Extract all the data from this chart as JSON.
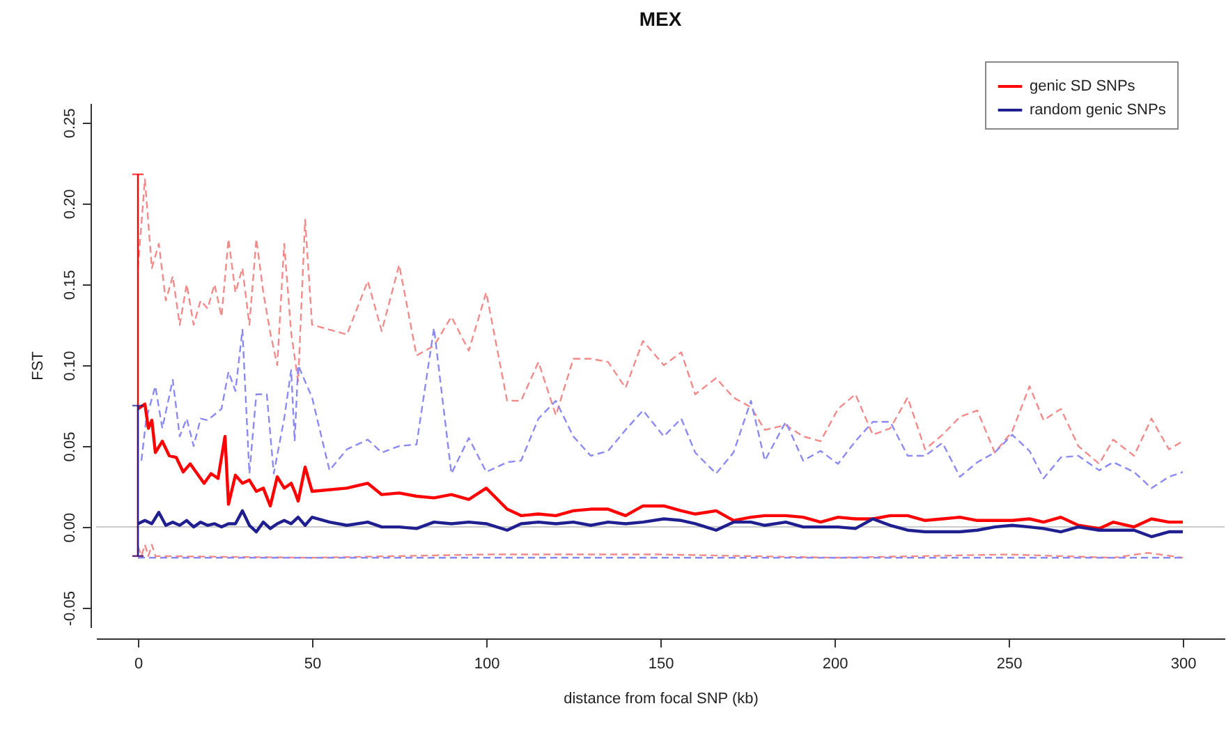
{
  "chart_data": {
    "type": "line",
    "title": "MEX",
    "xlabel": "distance from focal SNP (kb)",
    "ylabel": "FST",
    "xlim": [
      -12,
      312
    ],
    "xticks": [
      0,
      50,
      100,
      150,
      200,
      250,
      300
    ],
    "ylim": [
      -0.062,
      0.262
    ],
    "yticks": [
      -0.05,
      {
        "value": 0,
        "label": "0.00"
      },
      0.05,
      {
        "value": 0.1,
        "label": "0.10"
      },
      0.15,
      {
        "value": 0.2,
        "label": "0.20"
      },
      0.25
    ],
    "grid": false,
    "legend": "top right",
    "ref_lines": [
      {
        "axis": "y",
        "value": 0,
        "color": "#cccccc"
      }
    ],
    "series": [
      {
        "color": "#f28a8a",
        "line_style": "dashed",
        "x": [
          0,
          2,
          4,
          6,
          8,
          10,
          12,
          14,
          16,
          18,
          20,
          22,
          24,
          26,
          28,
          30,
          32,
          34,
          36,
          38,
          40,
          42,
          44,
          46,
          48,
          50,
          60,
          66,
          70,
          75,
          80,
          85,
          90,
          95,
          100,
          106,
          110,
          115,
          120,
          125,
          130,
          135,
          140,
          145,
          151,
          156,
          160,
          166,
          171,
          176,
          180,
          186,
          191,
          196,
          201,
          206,
          211,
          216,
          221,
          226,
          231,
          236,
          241,
          246,
          251,
          256,
          260,
          265,
          270,
          276,
          280,
          286,
          291,
          296,
          300
        ],
        "values": [
          0.16,
          0.215,
          0.16,
          0.175,
          0.14,
          0.155,
          0.125,
          0.15,
          0.125,
          0.14,
          0.135,
          0.15,
          0.13,
          0.178,
          0.145,
          0.16,
          0.125,
          0.178,
          0.145,
          0.12,
          0.1,
          0.175,
          0.12,
          0.09,
          0.19,
          0.125,
          0.119,
          0.152,
          0.121,
          0.162,
          0.106,
          0.112,
          0.13,
          0.109,
          0.145,
          0.078,
          0.078,
          0.102,
          0.069,
          0.104,
          0.104,
          0.102,
          0.086,
          0.115,
          0.1,
          0.108,
          0.082,
          0.092,
          0.08,
          0.074,
          0.06,
          0.063,
          0.056,
          0.053,
          0.073,
          0.082,
          0.057,
          0.061,
          0.08,
          0.048,
          0.057,
          0.068,
          0.072,
          0.046,
          0.059,
          0.087,
          0.066,
          0.073,
          0.05,
          0.039,
          0.054,
          0.044,
          0.067,
          0.048,
          0.053
        ]
      },
      {
        "color": "#8a8af2",
        "line_style": "dashed",
        "x": [
          1,
          2.4,
          5,
          7,
          10,
          12,
          14,
          16,
          18,
          20,
          24,
          26,
          28,
          30,
          32,
          34,
          37,
          39,
          42,
          44,
          45,
          46,
          50,
          55,
          60,
          66,
          70,
          75,
          80,
          85,
          90,
          95,
          100,
          106,
          110,
          115,
          120,
          125,
          130,
          135,
          140,
          145,
          151,
          156,
          160,
          166,
          171,
          176,
          180,
          186,
          191,
          196,
          201,
          206,
          211,
          216,
          221,
          226,
          231,
          236,
          241,
          246,
          251,
          256,
          260,
          265,
          270,
          276,
          280,
          286,
          291,
          296,
          300
        ],
        "values": [
          0.041,
          0.067,
          0.087,
          0.061,
          0.091,
          0.056,
          0.067,
          0.05,
          0.067,
          0.066,
          0.073,
          0.096,
          0.084,
          0.122,
          0.033,
          0.082,
          0.082,
          0.033,
          0.067,
          0.097,
          0.053,
          0.1,
          0.08,
          0.035,
          0.048,
          0.054,
          0.046,
          0.05,
          0.051,
          0.123,
          0.033,
          0.055,
          0.034,
          0.04,
          0.041,
          0.067,
          0.078,
          0.056,
          0.044,
          0.047,
          0.06,
          0.072,
          0.056,
          0.067,
          0.046,
          0.033,
          0.046,
          0.078,
          0.041,
          0.065,
          0.041,
          0.047,
          0.039,
          0.053,
          0.065,
          0.065,
          0.044,
          0.044,
          0.052,
          0.031,
          0.04,
          0.046,
          0.057,
          0.047,
          0.03,
          0.043,
          0.044,
          0.035,
          0.04,
          0.034,
          0.024,
          0.031,
          0.034
        ]
      },
      {
        "color": "#f28a8a",
        "line_style": "dashed",
        "x": [
          0,
          1,
          2,
          3,
          4,
          5,
          50,
          100,
          150,
          200,
          250,
          280,
          290,
          300
        ],
        "values": [
          -0.012,
          -0.018,
          -0.011,
          -0.018,
          -0.011,
          -0.018,
          -0.019,
          -0.017,
          -0.017,
          -0.019,
          -0.017,
          -0.019,
          -0.016,
          -0.019
        ]
      },
      {
        "color": "#8a8af2",
        "line_style": "dashed",
        "x": [
          0,
          100,
          200,
          300
        ],
        "values": [
          -0.019,
          -0.019,
          -0.019,
          -0.019
        ]
      },
      {
        "name": "genic SD SNPs",
        "color": "#ff0000",
        "line_style": "solid",
        "x": [
          0,
          2,
          3,
          4,
          5,
          7,
          9,
          11,
          13,
          15,
          17,
          19,
          21,
          23,
          25,
          26,
          28,
          30,
          32,
          34,
          36,
          38,
          40,
          42,
          44,
          45,
          46,
          48,
          50,
          60,
          66,
          70,
          75,
          80,
          85,
          90,
          95,
          100,
          106,
          110,
          115,
          120,
          125,
          130,
          135,
          140,
          145,
          151,
          156,
          160,
          166,
          171,
          176,
          180,
          186,
          191,
          196,
          201,
          206,
          211,
          216,
          221,
          226,
          231,
          236,
          241,
          246,
          251,
          256,
          260,
          265,
          270,
          276,
          280,
          286,
          291,
          296,
          300
        ],
        "values": [
          0.073,
          0.076,
          0.061,
          0.066,
          0.046,
          0.053,
          0.044,
          0.043,
          0.034,
          0.039,
          0.033,
          0.027,
          0.033,
          0.03,
          0.056,
          0.014,
          0.032,
          0.027,
          0.029,
          0.022,
          0.024,
          0.013,
          0.031,
          0.024,
          0.027,
          0.022,
          0.016,
          0.037,
          0.022,
          0.024,
          0.027,
          0.02,
          0.021,
          0.019,
          0.018,
          0.02,
          0.017,
          0.024,
          0.011,
          0.007,
          0.008,
          0.007,
          0.01,
          0.011,
          0.011,
          0.007,
          0.013,
          0.013,
          0.01,
          0.008,
          0.01,
          0.004,
          0.006,
          0.007,
          0.007,
          0.006,
          0.003,
          0.006,
          0.005,
          0.005,
          0.007,
          0.007,
          0.004,
          0.005,
          0.006,
          0.004,
          0.004,
          0.004,
          0.005,
          0.003,
          0.006,
          0.001,
          -0.001,
          0.003,
          0.0,
          0.005,
          0.003,
          0.003
        ],
        "errors": [
          [
            -0.018,
            0.218
          ],
          null,
          null,
          null,
          null,
          null,
          null,
          null,
          null,
          null,
          null,
          null,
          null,
          null,
          null,
          null,
          null,
          null,
          null,
          null,
          null,
          null,
          null,
          null,
          null,
          null,
          null,
          null,
          null,
          null,
          null,
          null,
          null,
          null,
          null,
          null,
          null,
          null,
          null,
          null,
          null,
          null,
          null,
          null,
          null,
          null,
          null,
          null,
          null,
          null,
          null,
          null,
          null,
          null,
          null,
          null,
          null,
          null,
          null,
          null,
          null,
          null,
          null,
          null,
          null,
          null,
          null,
          null,
          null,
          null,
          null,
          null,
          null,
          null,
          null,
          null,
          null,
          null
        ]
      },
      {
        "name": "random genic SNPs",
        "color": "#1f1f8f",
        "line_style": "solid",
        "x": [
          0,
          2,
          4,
          6,
          8,
          10,
          12,
          14,
          16,
          18,
          20,
          22,
          24,
          26,
          28,
          30,
          32,
          34,
          36,
          38,
          40,
          42,
          44,
          46,
          48,
          50,
          55,
          60,
          66,
          70,
          75,
          80,
          85,
          90,
          95,
          100,
          106,
          110,
          115,
          120,
          125,
          130,
          135,
          140,
          145,
          151,
          156,
          160,
          166,
          171,
          176,
          180,
          186,
          191,
          196,
          201,
          206,
          211,
          216,
          221,
          226,
          231,
          236,
          241,
          246,
          251,
          256,
          260,
          265,
          270,
          276,
          280,
          286,
          291,
          296,
          300
        ],
        "values": [
          0.002,
          0.004,
          0.002,
          0.009,
          0.001,
          0.003,
          0.001,
          0.004,
          0.0,
          0.003,
          0.001,
          0.002,
          0.0,
          0.002,
          0.002,
          0.01,
          0.001,
          -0.003,
          0.003,
          -0.001,
          0.002,
          0.004,
          0.002,
          0.006,
          0.001,
          0.006,
          0.003,
          0.001,
          0.003,
          0.0,
          0.0,
          -0.001,
          0.003,
          0.002,
          0.003,
          0.002,
          -0.002,
          0.002,
          0.003,
          0.002,
          0.003,
          0.001,
          0.003,
          0.002,
          0.003,
          0.005,
          0.004,
          0.002,
          -0.002,
          0.003,
          0.003,
          0.001,
          0.003,
          0.0,
          0.0,
          0.0,
          -0.001,
          0.005,
          0.001,
          -0.002,
          -0.003,
          -0.003,
          -0.003,
          -0.002,
          0.0,
          0.001,
          0.0,
          -0.001,
          -0.003,
          0.0,
          -0.002,
          -0.002,
          -0.002,
          -0.006,
          -0.003,
          -0.003
        ],
        "errors": [
          [
            -0.018,
            0.075
          ],
          null,
          null,
          null,
          null,
          null,
          null,
          null,
          null,
          null,
          null,
          null,
          null,
          null,
          null,
          null,
          null,
          null,
          null,
          null,
          null,
          null,
          null,
          null,
          null,
          null,
          null,
          null,
          null,
          null,
          null,
          null,
          null,
          null,
          null,
          null,
          null,
          null,
          null,
          null,
          null,
          null,
          null,
          null,
          null,
          null,
          null,
          null,
          null,
          null,
          null,
          null,
          null,
          null,
          null,
          null,
          null,
          null,
          null,
          null,
          null,
          null,
          null,
          null,
          null,
          null,
          null,
          null,
          null,
          null,
          null,
          null,
          null,
          null,
          null,
          null
        ]
      }
    ]
  }
}
